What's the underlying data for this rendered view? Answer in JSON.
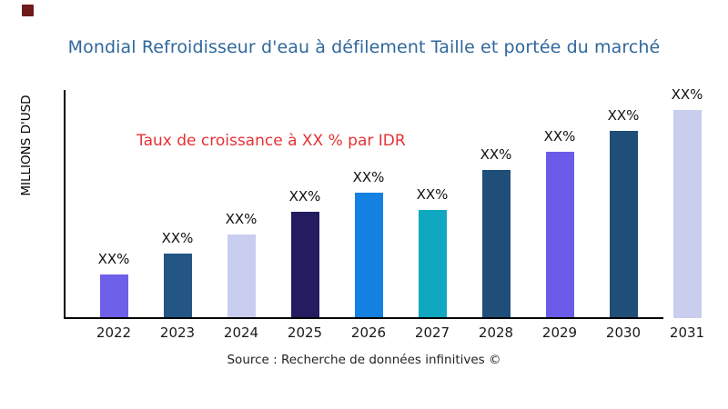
{
  "header": {
    "logo_color": "#6d1b1b",
    "title": "Mondial Refroidisseur d'eau à défilement Taille et portée du marché",
    "title_color": "#2f679c"
  },
  "chart_data": {
    "type": "bar",
    "title": "Mondial Refroidisseur d'eau à défilement Taille et portée du marché",
    "xlabel": "",
    "ylabel": "MILLIONS D'USD",
    "categories": [
      "2022",
      "2023",
      "2024",
      "2025",
      "2026",
      "2027",
      "2028",
      "2029",
      "2030",
      "2031"
    ],
    "bar_labels": [
      "XX%",
      "XX%",
      "XX%",
      "XX%",
      "XX%",
      "XX%",
      "XX%",
      "XX%",
      "XX%",
      "XX%"
    ],
    "values_relative": [
      21,
      31,
      40,
      51,
      60,
      52,
      71,
      80,
      90,
      100
    ],
    "ylim": [
      0,
      109
    ],
    "grid": false,
    "legend": "none",
    "bar_colors": [
      "#6f60ea",
      "#235684",
      "#c9cdf0",
      "#231c60",
      "#1480e2",
      "#10a8c0",
      "#1f4e79",
      "#6a5ce8",
      "#1f4e79",
      "#c9cdee"
    ],
    "annotation": {
      "text": "Taux de croissance à XX % par IDR",
      "color": "#e63234"
    },
    "axis_color": "#000000"
  },
  "footer": {
    "source": "Source : Recherche de données infinitives ©"
  }
}
